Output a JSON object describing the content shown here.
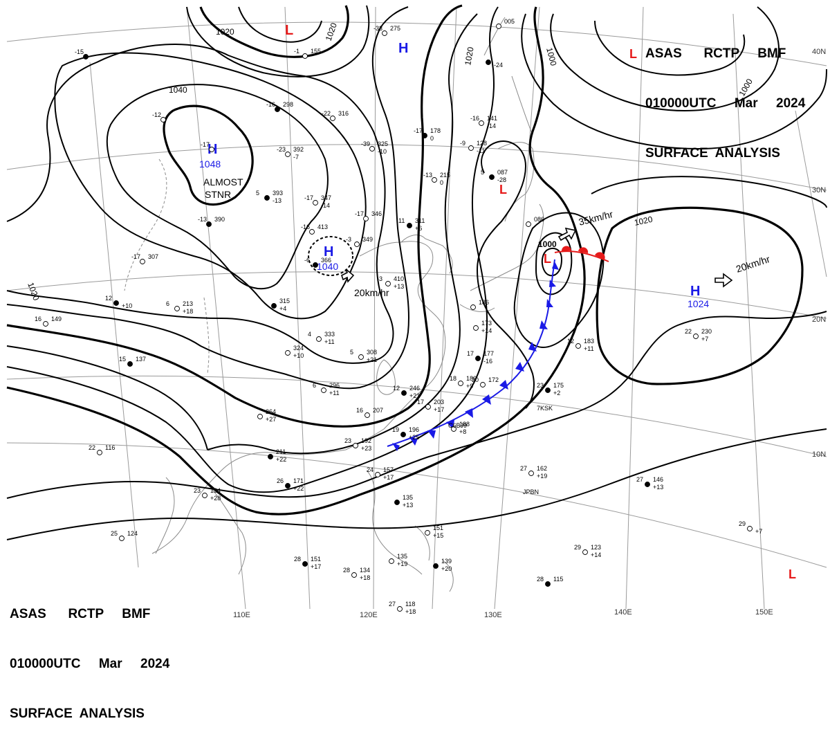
{
  "header": {
    "line1": "ASAS      RCTP     BMF",
    "line2": "010000UTC     Mar     2024",
    "line3": "SURFACE  ANALYSIS"
  },
  "colors": {
    "high": "#1a1ae6",
    "low": "#e61a1a",
    "isobar": "#000000",
    "grid": "#9a9a9a",
    "coast": "#8a8a8a"
  },
  "longitude_labels": [
    "110E",
    "120E",
    "130E",
    "140E",
    "150E"
  ],
  "latitude_labels": [
    "40N",
    "30N",
    "20N",
    "10N"
  ],
  "isobar_labels": {
    "i1040": "1040",
    "i1020a": "1020",
    "i1020b": "1020",
    "i1020c": "1020",
    "i1020d": "1020",
    "i1020e": "1020",
    "i1000a": "1000",
    "i1000b": "1000",
    "i1000c": "1000"
  },
  "pressure_systems": {
    "high_mongolia": {
      "symbol": "H",
      "value": "1048",
      "note1": "ALMOST",
      "note2": "STNR"
    },
    "high_china": {
      "symbol": "H",
      "value": "1040",
      "motion": "20km/hr"
    },
    "high_pacific": {
      "symbol": "H",
      "value": "1024",
      "motion": "20km/hr"
    },
    "high_north": {
      "symbol": "H"
    },
    "low_japan": {
      "symbol": "L",
      "value": "1000",
      "motion": "35km/hr"
    },
    "low_north": {
      "symbol": "L"
    },
    "low_ne": {
      "symbol": "L"
    },
    "low_sea": {
      "symbol": "L"
    },
    "low_se": {
      "symbol": "L"
    }
  },
  "stations": [
    {
      "t": "-15",
      "p": "",
      "tend": ""
    },
    {
      "t": "-12",
      "p": "",
      "tend": ""
    },
    {
      "t": "-17",
      "p": "",
      "tend": ""
    },
    {
      "t": "-13",
      "p": "390",
      "tend": ""
    },
    {
      "t": "-17",
      "p": "307",
      "tend": ""
    },
    {
      "t": "-1",
      "p": "155",
      "tend": ""
    },
    {
      "t": "-16",
      "p": "298",
      "tend": ""
    },
    {
      "t": "-22",
      "p": "316",
      "tend": ""
    },
    {
      "t": "-23",
      "p": "392",
      "tend": "-7"
    },
    {
      "t": "5",
      "p": "393",
      "tend": "-13"
    },
    {
      "t": "-17",
      "p": "347",
      "tend": "-14"
    },
    {
      "t": "-16",
      "p": "413",
      "tend": ""
    },
    {
      "t": "-6",
      "p": "366",
      "tend": ""
    },
    {
      "t": "-33",
      "p": "275",
      "tend": ""
    },
    {
      "t": "-39",
      "p": "325",
      "tend": "-10"
    },
    {
      "t": "-17",
      "p": "178",
      "tend": "0"
    },
    {
      "t": "-13",
      "p": "215",
      "tend": "0"
    },
    {
      "t": "-17",
      "p": "346",
      "tend": ""
    },
    {
      "t": "11",
      "p": "311",
      "tend": "+6"
    },
    {
      "t": "-3",
      "p": "349",
      "tend": ""
    },
    {
      "t": "-3",
      "p": "410",
      "tend": "+13"
    },
    {
      "t": "12",
      "p": "",
      "tend": "+10"
    },
    {
      "t": "16",
      "p": "149",
      "tend": ""
    },
    {
      "t": "6",
      "p": "213",
      "tend": "+18"
    },
    {
      "t": "",
      "p": "315",
      "tend": "+4"
    },
    {
      "t": "4",
      "p": "333",
      "tend": "+11"
    },
    {
      "t": "",
      "p": "324",
      "tend": "+10"
    },
    {
      "t": "15",
      "p": "137",
      "tend": ""
    },
    {
      "t": "5",
      "p": "308",
      "tend": "+21"
    },
    {
      "t": "6",
      "p": "296",
      "tend": "+11"
    },
    {
      "t": "12",
      "p": "246",
      "tend": "+21"
    },
    {
      "t": "17",
      "p": "203",
      "tend": "+17"
    },
    {
      "t": "18",
      "p": "180",
      "tend": "+9"
    },
    {
      "t": "17",
      "p": "177",
      "tend": "-16"
    },
    {
      "t": "20",
      "p": "172",
      "tend": ""
    },
    {
      "t": "16",
      "p": "207",
      "tend": ""
    },
    {
      "t": "19",
      "p": "196",
      "tend": "+25"
    },
    {
      "t": "",
      "p": "188",
      "tend": "+8"
    },
    {
      "t": "23",
      "p": "192",
      "tend": "+23"
    },
    {
      "t": "",
      "p": "211",
      "tend": "+22"
    },
    {
      "t": "",
      "p": "264",
      "tend": "+27"
    },
    {
      "t": "22",
      "p": "116",
      "tend": ""
    },
    {
      "t": "26",
      "p": "171",
      "tend": "+22"
    },
    {
      "t": "23",
      "p": "134",
      "tend": "+28"
    },
    {
      "t": "25",
      "p": "124",
      "tend": ""
    },
    {
      "t": "28",
      "p": "151",
      "tend": "+17"
    },
    {
      "t": "28",
      "p": "134",
      "tend": "+18"
    },
    {
      "t": "24",
      "p": "157",
      "tend": "+17"
    },
    {
      "t": "",
      "p": "135",
      "tend": "+13"
    },
    {
      "t": "",
      "p": "151",
      "tend": "+15"
    },
    {
      "t": "",
      "p": "135",
      "tend": "+19"
    },
    {
      "t": "",
      "p": "139",
      "tend": "+20"
    },
    {
      "t": "27",
      "p": "118",
      "tend": "+18"
    },
    {
      "t": "27",
      "p": "162",
      "tend": "+19"
    },
    {
      "t": "23",
      "p": "175",
      "tend": "+2"
    },
    {
      "t": "12",
      "p": "183",
      "tend": "+11"
    },
    {
      "t": "22",
      "p": "230",
      "tend": "+7"
    },
    {
      "t": "27",
      "p": "146",
      "tend": "+13"
    },
    {
      "t": "29",
      "p": "123",
      "tend": "+14"
    },
    {
      "t": "29",
      "p": "",
      "tend": "+7"
    },
    {
      "t": "28",
      "p": "115",
      "tend": ""
    },
    {
      "t": "-16",
      "p": "141",
      "tend": "-14"
    },
    {
      "t": "-9",
      "p": "128",
      "tend": "-11"
    },
    {
      "t": "5",
      "p": "087",
      "tend": "-28"
    },
    {
      "t": "",
      "p": "086",
      "tend": ""
    },
    {
      "t": "",
      "p": "005",
      "tend": ""
    },
    {
      "t": "",
      "p": "",
      "tend": "-24"
    },
    {
      "t": "",
      "p": "173",
      "tend": "+14"
    },
    {
      "t": "",
      "p": "186",
      "tend": ""
    }
  ],
  "ship_ids": [
    "7KSK",
    "C6BJ9",
    "JPBN"
  ]
}
